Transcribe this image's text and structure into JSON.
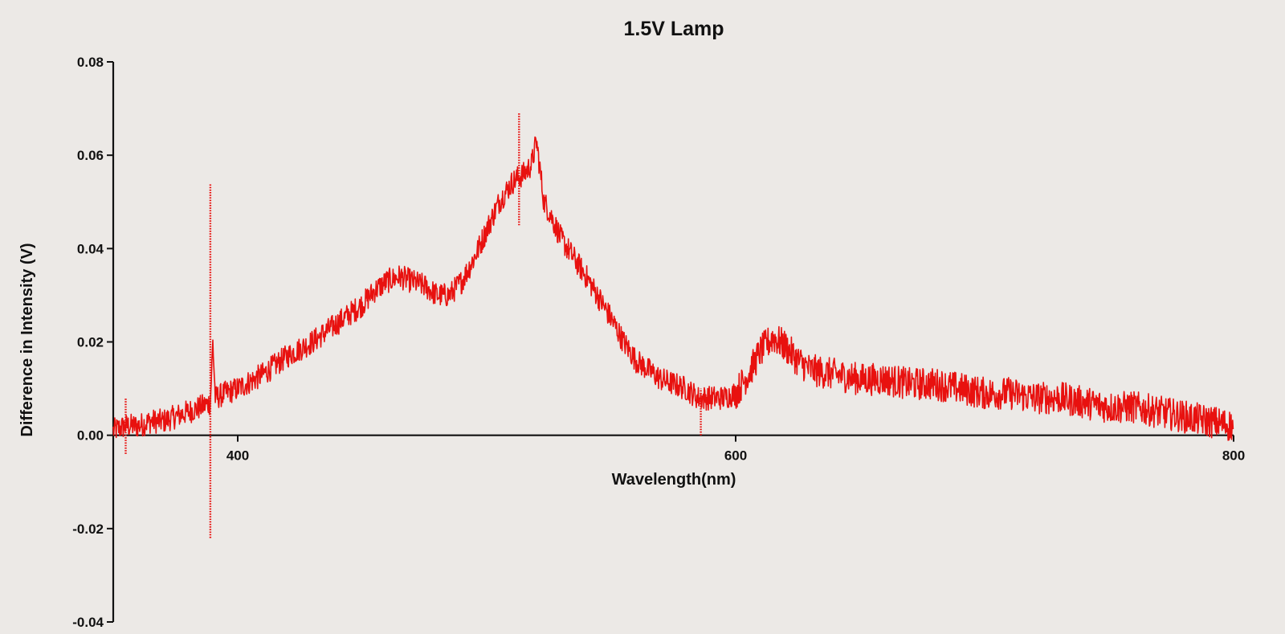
{
  "chart_data": {
    "type": "line",
    "title": "1.5V Lamp",
    "xlabel": "Wavelength(nm)",
    "ylabel": "Difference in Intensity (V)",
    "xlim": [
      350,
      800
    ],
    "ylim": [
      -0.04,
      0.08
    ],
    "xticks": [
      400,
      600,
      800
    ],
    "xtick_labels": [
      "400",
      "600",
      "800"
    ],
    "yticks": [
      -0.04,
      -0.02,
      0.0,
      0.02,
      0.04,
      0.06,
      0.08
    ],
    "ytick_labels": [
      "-0.04",
      "-0.02",
      "0.00",
      "0.02",
      "0.04",
      "0.06",
      "0.08"
    ],
    "x_axis_at_y": 0.0,
    "grid": false,
    "legend": "none",
    "series": [
      {
        "color": "#e8110f",
        "style": "dense noisy dotted line",
        "x": [
          350,
          355,
          360,
          365,
          370,
          375,
          380,
          385,
          389,
          390,
          391,
          395,
          400,
          410,
          420,
          430,
          440,
          450,
          455,
          460,
          465,
          470,
          475,
          480,
          485,
          490,
          495,
          500,
          505,
          510,
          512,
          515,
          518,
          520,
          523,
          525,
          530,
          540,
          550,
          555,
          560,
          570,
          580,
          585,
          590,
          595,
          600,
          605,
          610,
          615,
          620,
          625,
          630,
          640,
          650,
          660,
          670,
          680,
          690,
          700,
          710,
          720,
          730,
          740,
          750,
          760,
          770,
          780,
          790,
          800
        ],
        "y": [
          0.001,
          0.002,
          0.002,
          0.003,
          0.003,
          0.004,
          0.005,
          0.006,
          0.007,
          0.02,
          0.008,
          0.009,
          0.01,
          0.013,
          0.017,
          0.02,
          0.024,
          0.028,
          0.031,
          0.033,
          0.034,
          0.033,
          0.032,
          0.03,
          0.03,
          0.033,
          0.038,
          0.044,
          0.05,
          0.054,
          0.055,
          0.056,
          0.058,
          0.063,
          0.05,
          0.048,
          0.042,
          0.034,
          0.025,
          0.02,
          0.016,
          0.012,
          0.01,
          0.008,
          0.008,
          0.008,
          0.009,
          0.013,
          0.018,
          0.021,
          0.019,
          0.016,
          0.014,
          0.013,
          0.012,
          0.012,
          0.011,
          0.011,
          0.01,
          0.009,
          0.009,
          0.008,
          0.008,
          0.007,
          0.006,
          0.006,
          0.005,
          0.004,
          0.003,
          0.002
        ]
      }
    ],
    "noise_amplitude": 0.0035,
    "annotations_spikes": [
      {
        "x": 389,
        "ymin": -0.022,
        "ymax": 0.054
      },
      {
        "x": 513,
        "ymin": 0.045,
        "ymax": 0.069
      },
      {
        "x": 586,
        "ymin": 0.0,
        "ymax": 0.01
      },
      {
        "x": 355,
        "ymin": -0.004,
        "ymax": 0.008
      }
    ]
  }
}
